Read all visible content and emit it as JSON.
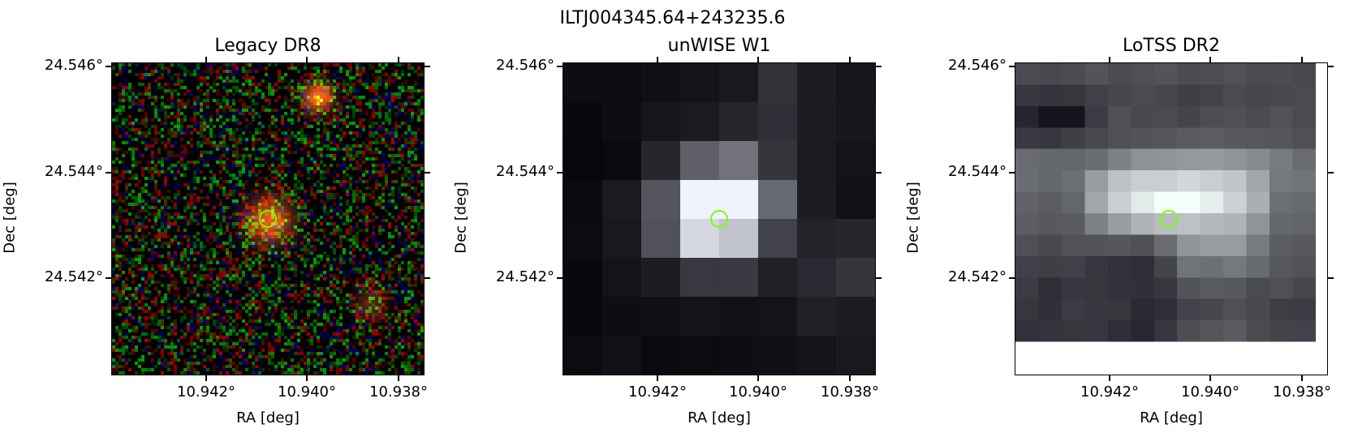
{
  "figure": {
    "suptitle": "ILTJ004345.64+243235.6",
    "panels": [
      {
        "title": "Legacy DR8",
        "style": "rgb"
      },
      {
        "title": "unWISE W1",
        "style": "gray"
      },
      {
        "title": "LoTSS DR2",
        "style": "bone"
      }
    ],
    "xlabel": "RA [deg]",
    "ylabel": "Dec [deg]",
    "x_ticks": [
      "10.942°",
      "10.940°",
      "10.938°"
    ],
    "y_ticks": [
      "24.546°",
      "24.544°",
      "24.542°"
    ],
    "marker_color": "#7cfc00"
  }
}
